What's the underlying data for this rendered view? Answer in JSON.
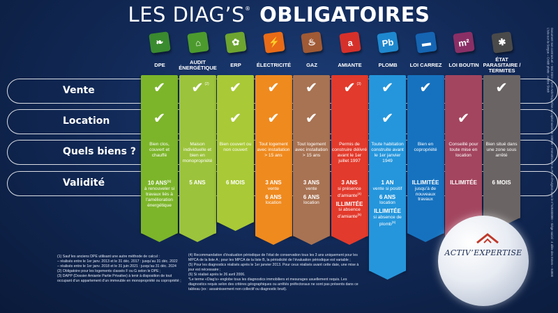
{
  "title": {
    "part1": "LES DIAG’S",
    "reg": "®",
    "part2": "OBLIGATOIRES"
  },
  "rows": {
    "vente": "Vente",
    "location": "Location",
    "quels_biens": "Quels biens ?",
    "validite": "Validité"
  },
  "check_glyph": "✔",
  "columns": [
    {
      "name": "DPE",
      "color": "#7cb52a",
      "icon": "leaf-icon",
      "icon_color": "#3a8a2f",
      "vente": true,
      "location": true,
      "biens": "Bien clos, couvert et chauffé",
      "validite_big": "10 ANS",
      "validite_mark": "(1)",
      "validite_text": "à renouveler si travaux liés à l’amélioration énergétique"
    },
    {
      "name": "AUDIT\nÉNERGÉTIQUE",
      "color": "#9cc33c",
      "icon": "house-energy-icon",
      "icon_color": "#4c9a2e",
      "vente": true,
      "vente_mark": "(2)",
      "location": false,
      "biens": "Maison individuelle et bien en monopropriété",
      "validite_big": "5 ANS"
    },
    {
      "name": "ERP",
      "color": "#a9c936",
      "icon": "plant-icon",
      "icon_color": "#6ea530",
      "vente": true,
      "location": true,
      "biens": "Bien couvert ou non couvert",
      "validite_big": "6 MOIS"
    },
    {
      "name": "ÉLECTRICITÉ",
      "color": "#ef8a1f",
      "icon": "electric-plug-icon",
      "icon_color": "#e86b17",
      "vente": true,
      "location": true,
      "biens": "Tout logement avec installation > 15 ans",
      "v1_big": "3 ANS",
      "v1_small": "vente",
      "v2_big": "6 ANS",
      "v2_small": "location"
    },
    {
      "name": "GAZ",
      "color": "#a87353",
      "icon": "gas-flame-icon",
      "icon_color": "#a05a35",
      "vente": true,
      "location": true,
      "biens": "Tout logement avec installation > 15 ans",
      "v1_big": "3 ANS",
      "v1_small": "vente",
      "v2_big": "6 ANS",
      "v2_small": "location"
    },
    {
      "name": "AMIANTE",
      "color": "#e23a2c",
      "icon": "asbestos-icon",
      "icon_color": "#d6302b",
      "vente": true,
      "vente_mark": "(3)",
      "location": false,
      "biens": "Permis de construire délivré avant le 1er juillet 1997",
      "v1_big": "3 ANS",
      "v1_small": "si présence d’amiante",
      "v1_mark": "(4)",
      "v2_big": "ILLIMITÉE",
      "v2_small": "si absence d’amiante",
      "v2_mark": "(5)"
    },
    {
      "name": "PLOMB",
      "color": "#2596dc",
      "icon": "lead-pb-icon",
      "icon_color": "#1e88cf",
      "vente": true,
      "location": true,
      "biens": "Toute habitation construite avant le 1er janvier 1949",
      "v1_big": "1 AN",
      "v1_small": "vente si positif",
      "v2_big": "6 ANS",
      "v2_small": "location",
      "v3_big": "ILLIMITÉE",
      "v3_small": "si absence de plomb",
      "v3_mark": "(6)"
    },
    {
      "name": "LOI CARREZ",
      "color": "#1672bf",
      "icon": "ruler-icon",
      "icon_color": "#1565b3",
      "vente": true,
      "location": false,
      "biens": "Bien en copropriété",
      "validite_big": "ILLIMITÉE",
      "validite_text": "jusqu’à de nouveaux travaux"
    },
    {
      "name": "LOI BOUTIN",
      "color": "#a3455f",
      "icon": "area-m2-icon",
      "icon_color": "#8a2f66",
      "vente": false,
      "location": true,
      "biens": "Conseillé pour toute mise en location",
      "validite_big": "ILLIMITÉE"
    },
    {
      "name": "ÉTAT\nPARASITAIRE /\nTERMITES",
      "color": "#6b6464",
      "icon": "termite-icon",
      "icon_color": "#4a4a4a",
      "vente": true,
      "location": false,
      "biens": "Bien situé dans une zone sous arrêté",
      "validite_big": "6 MOIS"
    }
  ],
  "notes_left": [
    "(1) Sauf les anciens DPE utilisant une autre méthode de calcul :",
    "– réalisés entre le 1er janv. 2013 et le 31 déc. 2017 : jusqu’au 31 déc. 2022",
    "– réalisés entre le 1er janv. 2018 et le 31 juin 2021 : jusqu’au 31 déc. 2024",
    "(2) Obligatoire pour les logements classés F ou G selon le DPE ;",
    "(3) DAPP (Dossier Amiante Partie Privative) à tenir à disposition de tout occupant d’un appartement d’un immeuble en monopropriété ou copropriété ;"
  ],
  "notes_right": [
    "(4) Recommandation d’évaluation périodique de l’état de conservation tous les 3 ans uniquement pour les MPCA de la liste A ; pour les MPCA de la liste B, la périodicité de l’évaluation périodique est variable ;",
    "(5) Pour les diagnostics réalisés après le 1er janvier 2013. Pour ceux réalisés avant cette date, une mise à jour est nécessaire ;",
    "(6) Si réalisé après le 26 avril 2006.",
    "*Le terme «Diag’s» englobe tous les diagnostics immobiliers et mesurages usuellement requis. Les diagnostics requis selon des critères géographiques ou arrêtés préfectoraux ne sont pas présents dans ce tableau (ex : assainissement non collectif ou diagnostic bruit)."
  ],
  "side_text": "Document non contractuel – Mai 2023 – SAS Activ’Expertise au capital social de 10000€ – Immatriculée au RCS d’Avignon sous le n°528400088 – Siège social : 4 allée des Esters – 84800 L’Isle-sur-la-Sorgue – Crédit photo : Adobe Stock",
  "logo": {
    "text": "ACTIV’EXPERTISE"
  }
}
